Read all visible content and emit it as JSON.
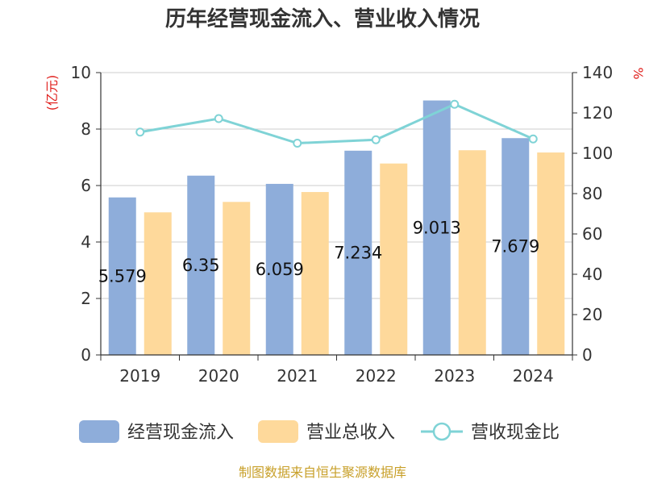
{
  "chart_data": {
    "type": "bar",
    "title": "历年经营现金流入、营业收入情况",
    "categories": [
      "2019",
      "2020",
      "2021",
      "2022",
      "2023",
      "2024"
    ],
    "series": [
      {
        "name": "经营现金流入",
        "type": "bar",
        "axis": "left",
        "color": "#8eadda",
        "values": [
          5.579,
          6.35,
          6.059,
          7.234,
          9.013,
          7.679
        ],
        "data_labels": [
          "5.579",
          "6.35",
          "6.059",
          "7.234",
          "9.013",
          "7.679"
        ]
      },
      {
        "name": "营业总收入",
        "type": "bar",
        "axis": "left",
        "color": "#fed99b",
        "values": [
          5.05,
          5.42,
          5.77,
          6.78,
          7.25,
          7.17
        ]
      },
      {
        "name": "营收现金比",
        "type": "line",
        "axis": "right",
        "color": "#7fd3d6",
        "values": [
          110.5,
          117.2,
          105.0,
          106.7,
          124.3,
          107.1
        ]
      }
    ],
    "y_left": {
      "label": "(亿元)",
      "range": [
        0,
        10
      ],
      "ticks": [
        "0",
        "2",
        "4",
        "6",
        "8",
        "10"
      ]
    },
    "y_right": {
      "label": "%",
      "range": [
        0,
        140
      ],
      "ticks": [
        "0",
        "20",
        "40",
        "60",
        "80",
        "100",
        "120",
        "140"
      ]
    },
    "grid": true,
    "legend_position": "bottom",
    "source": "制图数据来自恒生聚源数据库"
  }
}
